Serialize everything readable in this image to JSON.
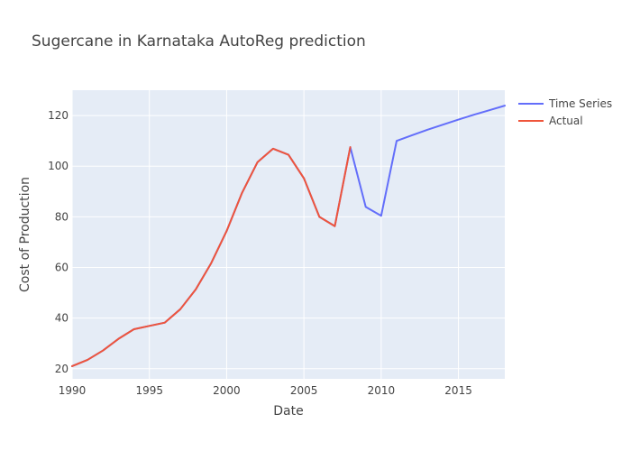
{
  "chart_data": {
    "type": "line",
    "title": "Sugercane in Karnataka AutoReg prediction",
    "xlabel": "Date",
    "ylabel": "Cost of Production",
    "xlim": [
      1990,
      2018
    ],
    "ylim": [
      16,
      130
    ],
    "x_ticks": [
      1990,
      1995,
      2000,
      2005,
      2010,
      2015
    ],
    "y_ticks": [
      20,
      40,
      60,
      80,
      100,
      120
    ],
    "grid": true,
    "legend_position": "top-right",
    "series": [
      {
        "name": "Time Series",
        "color": "#636efa",
        "x": [
          1990,
          1991,
          1992,
          1993,
          1994,
          1995,
          1996,
          1997,
          1998,
          1999,
          2000,
          2001,
          2002,
          2003,
          2004,
          2005,
          2006,
          2007,
          2008,
          2009,
          2010,
          2011,
          2012,
          2013,
          2014,
          2015,
          2016,
          2017,
          2018
        ],
        "y": [
          21,
          23.5,
          27.2,
          31.8,
          35.6,
          36.9,
          38.2,
          43.5,
          51.3,
          61.7,
          74.4,
          89.5,
          101.6,
          106.9,
          104.5,
          95.2,
          80,
          76.3,
          107.5,
          83.9,
          80.4,
          110,
          112.2,
          114.4,
          116.4,
          118.4,
          120.3,
          122.1,
          123.9
        ]
      },
      {
        "name": "Actual",
        "color": "#ef553b",
        "x": [
          1990,
          1991,
          1992,
          1993,
          1994,
          1995,
          1996,
          1997,
          1998,
          1999,
          2000,
          2001,
          2002,
          2003,
          2004,
          2005,
          2006,
          2007,
          2008
        ],
        "y": [
          21,
          23.5,
          27.2,
          31.8,
          35.6,
          36.9,
          38.2,
          43.5,
          51.3,
          61.7,
          74.4,
          89.5,
          101.6,
          106.9,
          104.5,
          95.2,
          80,
          76.3,
          107.5
        ]
      }
    ]
  }
}
